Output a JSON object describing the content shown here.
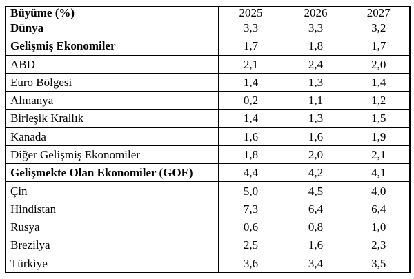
{
  "colors": {
    "background": "#ffffff",
    "border": "#000000",
    "text": "#000000"
  },
  "table": {
    "header": {
      "label": "Büyüme (%)",
      "years": [
        "2025",
        "2026",
        "2027"
      ]
    },
    "rows": [
      {
        "label": "Dünya",
        "bold": true,
        "values": [
          "3,3",
          "3,3",
          "3,2"
        ]
      },
      {
        "label": "Gelişmiş Ekonomiler",
        "bold": true,
        "values": [
          "1,7",
          "1,8",
          "1,7"
        ]
      },
      {
        "label": "ABD",
        "bold": false,
        "values": [
          "2,1",
          "2,4",
          "2,0"
        ]
      },
      {
        "label": "Euro Bölgesi",
        "bold": false,
        "values": [
          "1,4",
          "1,3",
          "1,4"
        ]
      },
      {
        "label": "Almanya",
        "bold": false,
        "values": [
          "0,2",
          "1,1",
          "1,2"
        ]
      },
      {
        "label": "Birleşik Krallık",
        "bold": false,
        "values": [
          "1,4",
          "1,3",
          "1,5"
        ]
      },
      {
        "label": "Kanada",
        "bold": false,
        "values": [
          "1,6",
          "1,6",
          "1,9"
        ]
      },
      {
        "label": "Diğer Gelişmiş Ekonomiler",
        "bold": false,
        "values": [
          "1,8",
          "2,0",
          "2,1"
        ]
      },
      {
        "label": "Gelişmekte Olan Ekonomiler (GOE)",
        "bold": true,
        "values": [
          "4,4",
          "4,2",
          "4,1"
        ]
      },
      {
        "label": "Çin",
        "bold": false,
        "values": [
          "5,0",
          "4,5",
          "4,0"
        ]
      },
      {
        "label": "Hindistan",
        "bold": false,
        "values": [
          "7,3",
          "6,4",
          "6,4"
        ]
      },
      {
        "label": "Rusya",
        "bold": false,
        "values": [
          "0,6",
          "0,8",
          "1,0"
        ]
      },
      {
        "label": "Brezilya",
        "bold": false,
        "values": [
          "2,5",
          "1,6",
          "2,3"
        ]
      },
      {
        "label": "Türkiye",
        "bold": false,
        "values": [
          "3,6",
          "3,4",
          "3,5"
        ]
      }
    ]
  }
}
